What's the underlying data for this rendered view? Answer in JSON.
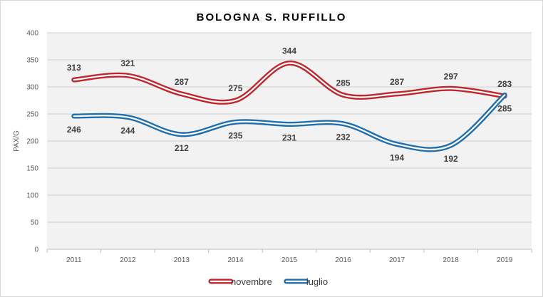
{
  "chart_data": {
    "type": "line",
    "title": "BOLOGNA S. RUFFILLO",
    "xlabel": "",
    "ylabel": "PAX/G",
    "ylim": [
      0,
      400
    ],
    "yticks": [
      0,
      50,
      100,
      150,
      200,
      250,
      300,
      350,
      400
    ],
    "categories": [
      "2011",
      "2012",
      "2013",
      "2014",
      "2015",
      "2016",
      "2017",
      "2018",
      "2019"
    ],
    "grid": true,
    "legend_position": "bottom",
    "series": [
      {
        "name": "novembre",
        "color": "#c0262d",
        "values": [
          313,
          321,
          287,
          275,
          344,
          285,
          287,
          297,
          283
        ]
      },
      {
        "name": "luglio",
        "color": "#1f6faf",
        "values": [
          246,
          244,
          212,
          235,
          231,
          232,
          194,
          192,
          285
        ]
      }
    ]
  }
}
